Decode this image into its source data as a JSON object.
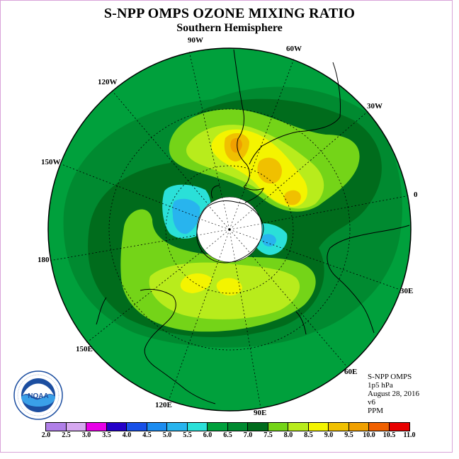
{
  "header": {
    "title": "S-NPP OMPS OZONE MIXING RATIO",
    "subtitle": "Southern Hemisphere"
  },
  "longitude_labels": {
    "w90": "90W",
    "w60": "60W",
    "w30": "30W",
    "zero": "0",
    "e30": "30E",
    "e60": "60E",
    "e90": "90E",
    "e120": "120E",
    "e150": "150E",
    "d180": "180",
    "w150": "150W",
    "w120": "120W"
  },
  "info": {
    "instrument": "S-NPP OMPS",
    "level": "1p5 hPa",
    "date": "August 28, 2016",
    "version": "v6",
    "units": "PPM"
  },
  "logo": {
    "text": "NOAA",
    "ring_text": "NATIONAL OCEANIC AND ATMOSPHERIC ADMINISTRATION · U.S. DEPARTMENT OF COMMERCE"
  },
  "colorbar": {
    "ticks": [
      "2.0",
      "2.5",
      "3.0",
      "3.5",
      "4.0",
      "4.5",
      "5.0",
      "5.5",
      "6.0",
      "6.5",
      "7.0",
      "7.5",
      "8.0",
      "8.5",
      "9.0",
      "9.5",
      "10.0",
      "10.5",
      "11.0"
    ],
    "colors": [
      "#b07fe8",
      "#d6a8f0",
      "#e800e8",
      "#2400c8",
      "#1850e8",
      "#1c8cf0",
      "#28b4ee",
      "#2ae0d8",
      "#00a03c",
      "#008a30",
      "#006c1c",
      "#74d418",
      "#b8ec1c",
      "#f4f400",
      "#f0c000",
      "#f0a000",
      "#f06000",
      "#e80000",
      "#8a5a3a"
    ]
  },
  "map_colors": {
    "c6_0": "#00a03c",
    "c6_5": "#008a30",
    "c7_0": "#006c1c",
    "c7_5": "#74d418",
    "c8_0": "#b8ec1c",
    "c8_5": "#f4f400",
    "c9_0": "#f0c000",
    "c9_5": "#f0a000",
    "c5_0": "#28b4ee",
    "c5_5": "#2ae0d8",
    "pole": "#ffffff"
  }
}
